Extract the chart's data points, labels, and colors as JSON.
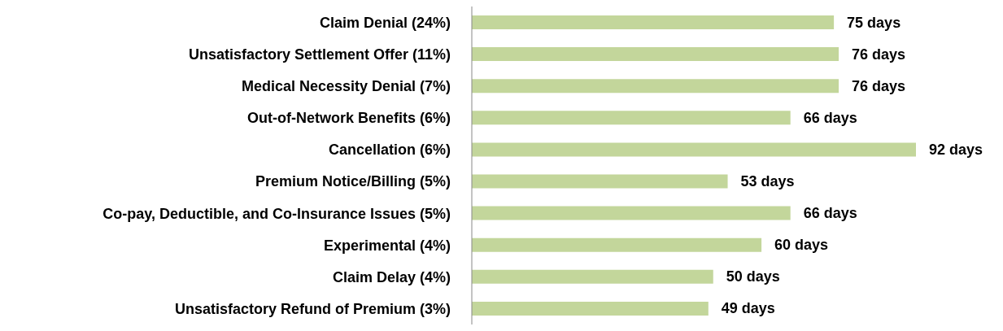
{
  "chart_data": {
    "type": "bar",
    "orientation": "horizontal",
    "categories": [
      "Claim Denial (24%)",
      "Unsatisfactory Settlement Offer (11%)",
      "Medical Necessity Denial (7%)",
      "Out-of-Network Benefits (6%)",
      "Cancellation (6%)",
      "Premium Notice/Billing (5%)",
      "Co-pay, Deductible, and Co-Insurance Issues (5%)",
      "Experimental (4%)",
      "Claim Delay (4%)",
      "Unsatisfactory Refund of Premium (3%)"
    ],
    "values": [
      75,
      76,
      76,
      66,
      92,
      53,
      66,
      60,
      50,
      49
    ],
    "value_labels": [
      "75 days",
      "76 days",
      "76 days",
      "66 days",
      "92 days",
      "53 days",
      "66 days",
      "60 days",
      "50 days",
      "49 days"
    ],
    "color": "#c3d69b"
  }
}
